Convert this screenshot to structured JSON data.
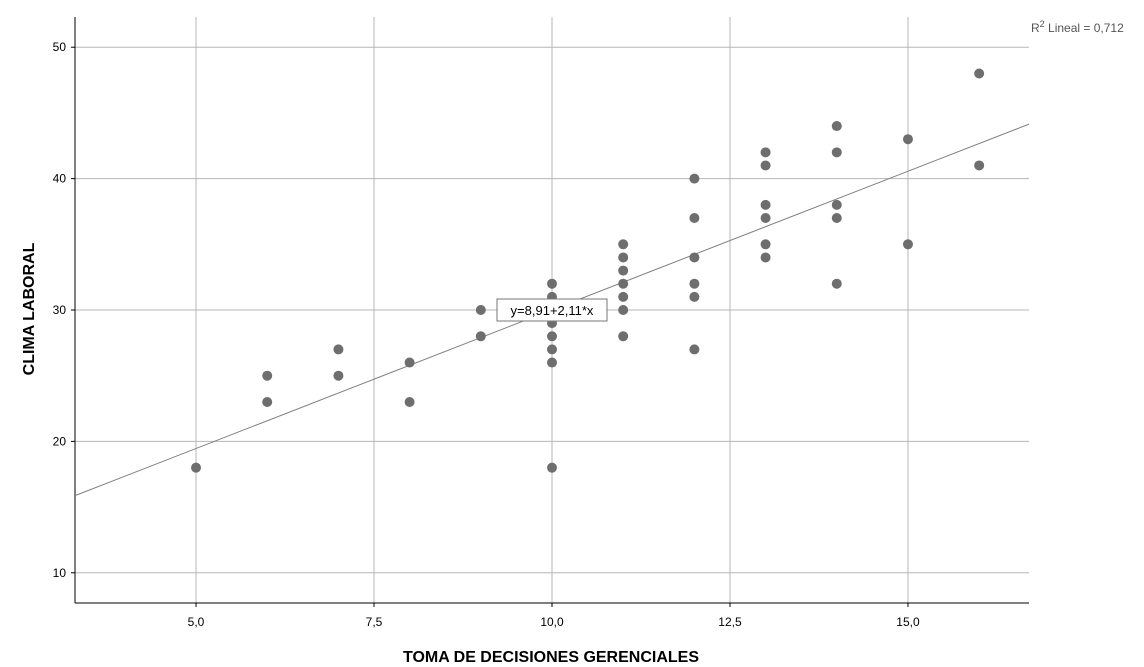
{
  "chart_data": {
    "type": "scatter",
    "xlabel": "TOMA DE DECISIONES GERENCIALES",
    "ylabel": "CLIMA LABORAL",
    "xlim": [
      3.3,
      16.7
    ],
    "ylim": [
      7.7,
      52.3
    ],
    "x_ticks": [
      5.0,
      7.5,
      10.0,
      12.5,
      15.0
    ],
    "x_tick_labels": [
      "5,0",
      "7,5",
      "10,0",
      "12,5",
      "15,0"
    ],
    "y_ticks": [
      10,
      20,
      30,
      40,
      50
    ],
    "y_tick_labels": [
      "10",
      "20",
      "30",
      "40",
      "50"
    ],
    "grid": true,
    "points": [
      {
        "x": 5,
        "y": 18
      },
      {
        "x": 6,
        "y": 25
      },
      {
        "x": 6,
        "y": 23
      },
      {
        "x": 7,
        "y": 27
      },
      {
        "x": 7,
        "y": 25
      },
      {
        "x": 8,
        "y": 26
      },
      {
        "x": 8,
        "y": 23
      },
      {
        "x": 9,
        "y": 30
      },
      {
        "x": 9,
        "y": 28
      },
      {
        "x": 10,
        "y": 32
      },
      {
        "x": 10,
        "y": 31
      },
      {
        "x": 10,
        "y": 30
      },
      {
        "x": 10,
        "y": 29
      },
      {
        "x": 10,
        "y": 28
      },
      {
        "x": 10,
        "y": 27
      },
      {
        "x": 10,
        "y": 26
      },
      {
        "x": 10,
        "y": 18
      },
      {
        "x": 11,
        "y": 35
      },
      {
        "x": 11,
        "y": 34
      },
      {
        "x": 11,
        "y": 33
      },
      {
        "x": 11,
        "y": 32
      },
      {
        "x": 11,
        "y": 31
      },
      {
        "x": 11,
        "y": 30
      },
      {
        "x": 11,
        "y": 28
      },
      {
        "x": 12,
        "y": 40
      },
      {
        "x": 12,
        "y": 37
      },
      {
        "x": 12,
        "y": 34
      },
      {
        "x": 12,
        "y": 32
      },
      {
        "x": 12,
        "y": 31
      },
      {
        "x": 12,
        "y": 27
      },
      {
        "x": 13,
        "y": 42
      },
      {
        "x": 13,
        "y": 41
      },
      {
        "x": 13,
        "y": 38
      },
      {
        "x": 13,
        "y": 37
      },
      {
        "x": 13,
        "y": 35
      },
      {
        "x": 13,
        "y": 34
      },
      {
        "x": 14,
        "y": 44
      },
      {
        "x": 14,
        "y": 42
      },
      {
        "x": 14,
        "y": 38
      },
      {
        "x": 14,
        "y": 37
      },
      {
        "x": 14,
        "y": 32
      },
      {
        "x": 15,
        "y": 43
      },
      {
        "x": 15,
        "y": 35
      },
      {
        "x": 16,
        "y": 48
      },
      {
        "x": 16,
        "y": 41
      }
    ],
    "fit_line": {
      "intercept": 8.91,
      "slope": 2.11,
      "equation_label": "y=8,91+2,11*x",
      "equation_anchor": {
        "x": 10.0,
        "y": 30.0
      },
      "r2_label_prefix": "R",
      "r2_label_sup": "2",
      "r2_label_suffix": " Lineal = 0,712"
    },
    "colors": {
      "points": "#6e6e6e",
      "fit_line": "#808080",
      "grid": "#b7b7b7"
    }
  }
}
